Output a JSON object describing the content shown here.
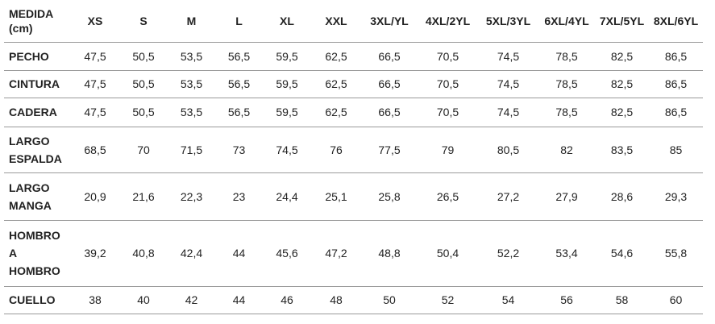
{
  "table": {
    "header": [
      "MEDIDA\n(cm)",
      "XS",
      "S",
      "M",
      "L",
      "XL",
      "XXL",
      "3XL/YL",
      "4XL/2YL",
      "5XL/3YL",
      "6XL/4YL",
      "7XL/5YL",
      "8XL/6YL"
    ],
    "rows": [
      [
        "PECHO",
        "47,5",
        "50,5",
        "53,5",
        "56,5",
        "59,5",
        "62,5",
        "66,5",
        "70,5",
        "74,5",
        "78,5",
        "82,5",
        "86,5"
      ],
      [
        "CINTURA",
        "47,5",
        "50,5",
        "53,5",
        "56,5",
        "59,5",
        "62,5",
        "66,5",
        "70,5",
        "74,5",
        "78,5",
        "82,5",
        "86,5"
      ],
      [
        "CADERA",
        "47,5",
        "50,5",
        "53,5",
        "56,5",
        "59,5",
        "62,5",
        "66,5",
        "70,5",
        "74,5",
        "78,5",
        "82,5",
        "86,5"
      ],
      [
        "LARGO\nESPALDA",
        "68,5",
        "70",
        "71,5",
        "73",
        "74,5",
        "76",
        "77,5",
        "79",
        "80,5",
        "82",
        "83,5",
        "85"
      ],
      [
        "LARGO\nMANGA",
        "20,9",
        "21,6",
        "22,3",
        "23",
        "24,4",
        "25,1",
        "25,8",
        "26,5",
        "27,2",
        "27,9",
        "28,6",
        "29,3"
      ],
      [
        "HOMBRO\nA\nHOMBRO",
        "39,2",
        "40,8",
        "42,4",
        "44",
        "45,6",
        "47,2",
        "48,8",
        "50,4",
        "52,2",
        "53,4",
        "54,6",
        "55,8"
      ],
      [
        "CUELLO",
        "38",
        "40",
        "42",
        "44",
        "46",
        "48",
        "50",
        "52",
        "54",
        "56",
        "58",
        "60"
      ]
    ]
  }
}
